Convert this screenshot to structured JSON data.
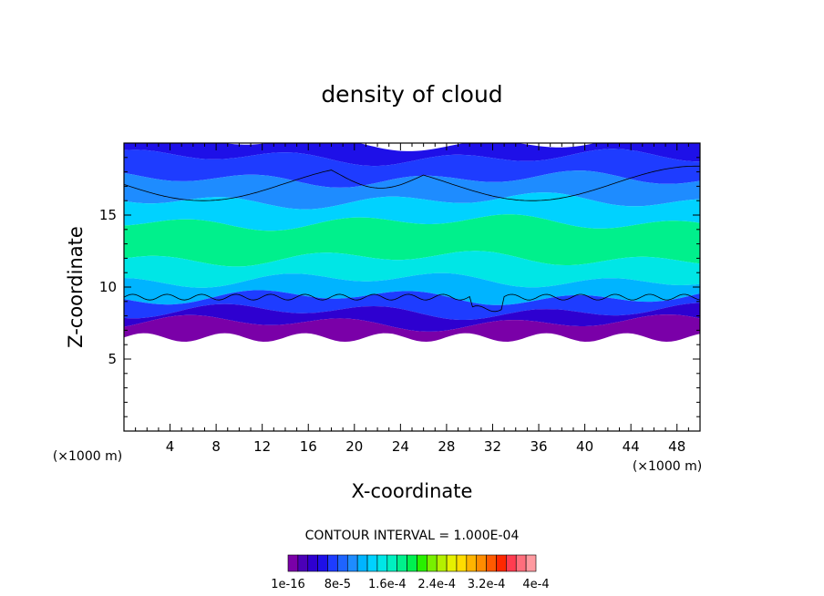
{
  "chart_data": {
    "type": "contour",
    "title": "density of cloud",
    "xlabel": "X-coordinate",
    "ylabel": "Z-coordinate",
    "x_unit_label_left": "(×1000 m)",
    "x_unit_label_right": "(×1000 m)",
    "xlim": [
      0,
      50
    ],
    "ylim": [
      0,
      20
    ],
    "x_ticks": [
      4,
      8,
      12,
      16,
      20,
      24,
      28,
      32,
      36,
      40,
      44,
      48
    ],
    "y_ticks": [
      5,
      10,
      15
    ],
    "contour_interval_text": "CONTOUR INTERVAL = 1.000E-04",
    "colorbar_labels": [
      "1e-16",
      "8e-5",
      "1.6e-4",
      "2.4e-4",
      "3.2e-4",
      "4e-4"
    ],
    "colorbar_colors": [
      "#7a00a8",
      "#4b00b8",
      "#2e00d0",
      "#1e10e8",
      "#1e3cff",
      "#1e64ff",
      "#1e8cff",
      "#00b4ff",
      "#00d2ff",
      "#00e6e6",
      "#00f0c0",
      "#00f08c",
      "#00f050",
      "#28f000",
      "#78f000",
      "#b4f000",
      "#e6f000",
      "#ffdc00",
      "#ffb400",
      "#ff8c00",
      "#ff5a00",
      "#ff2800",
      "#ff3c50",
      "#ff6e7c",
      "#ff9aa0"
    ],
    "description_layers": [
      {
        "z_bottom": 6.5,
        "z_top": 7.5,
        "level_index": 0
      },
      {
        "z_bottom": 7.5,
        "z_top": 8.3,
        "level_index": 2
      },
      {
        "z_bottom": 8.3,
        "z_top": 9.3,
        "level_index": 4
      },
      {
        "z_bottom": 9.3,
        "z_top": 10.5,
        "level_index": 7
      },
      {
        "z_bottom": 10.5,
        "z_top": 12.0,
        "level_index": 9
      },
      {
        "z_bottom": 12.0,
        "z_top": 14.5,
        "level_index": 11
      },
      {
        "z_bottom": 14.5,
        "z_top": 16.0,
        "level_index": 8
      },
      {
        "z_bottom": 16.0,
        "z_top": 17.5,
        "level_index": 6
      },
      {
        "z_bottom": 17.5,
        "z_top": 19.0,
        "level_index": 4
      },
      {
        "z_bottom": 19.0,
        "z_top": 20.0,
        "level_index": 3
      }
    ]
  }
}
